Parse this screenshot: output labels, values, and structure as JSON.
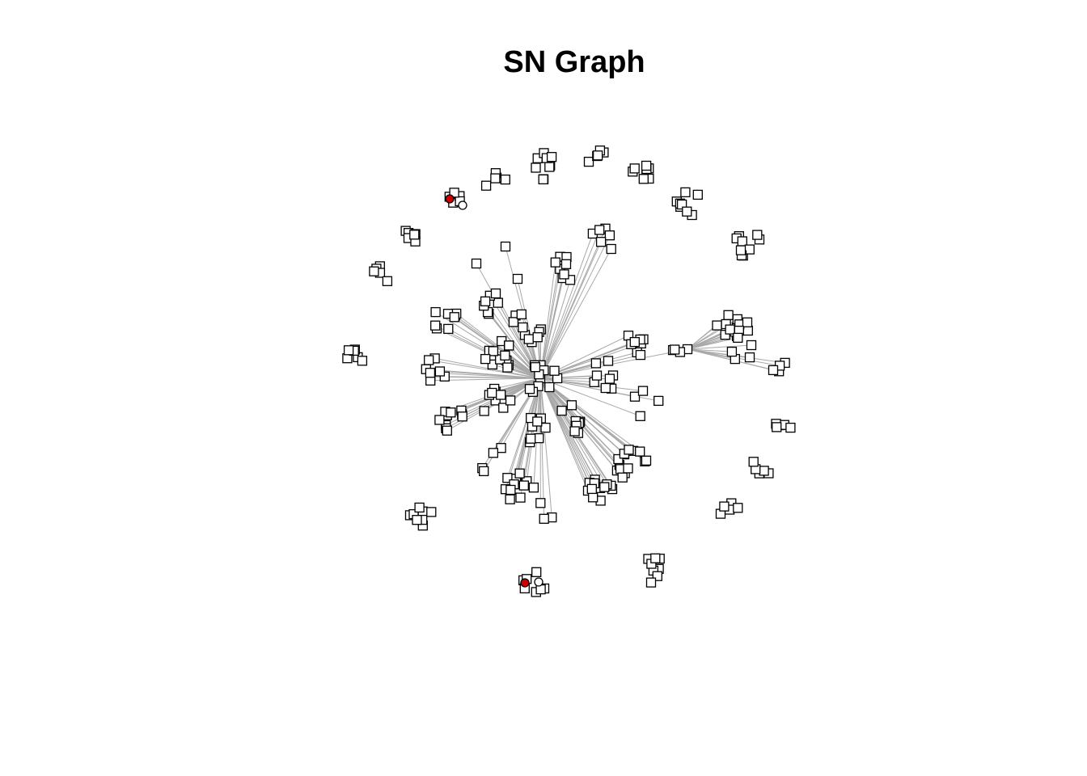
{
  "title": "SN Graph",
  "colors": {
    "edge": "#a8a8a8",
    "node_fill": "#ffffff",
    "node_stroke": "#000000",
    "highlight_fill": "#cc0000"
  },
  "node_shape": "square",
  "highlight_shape": "circle"
}
